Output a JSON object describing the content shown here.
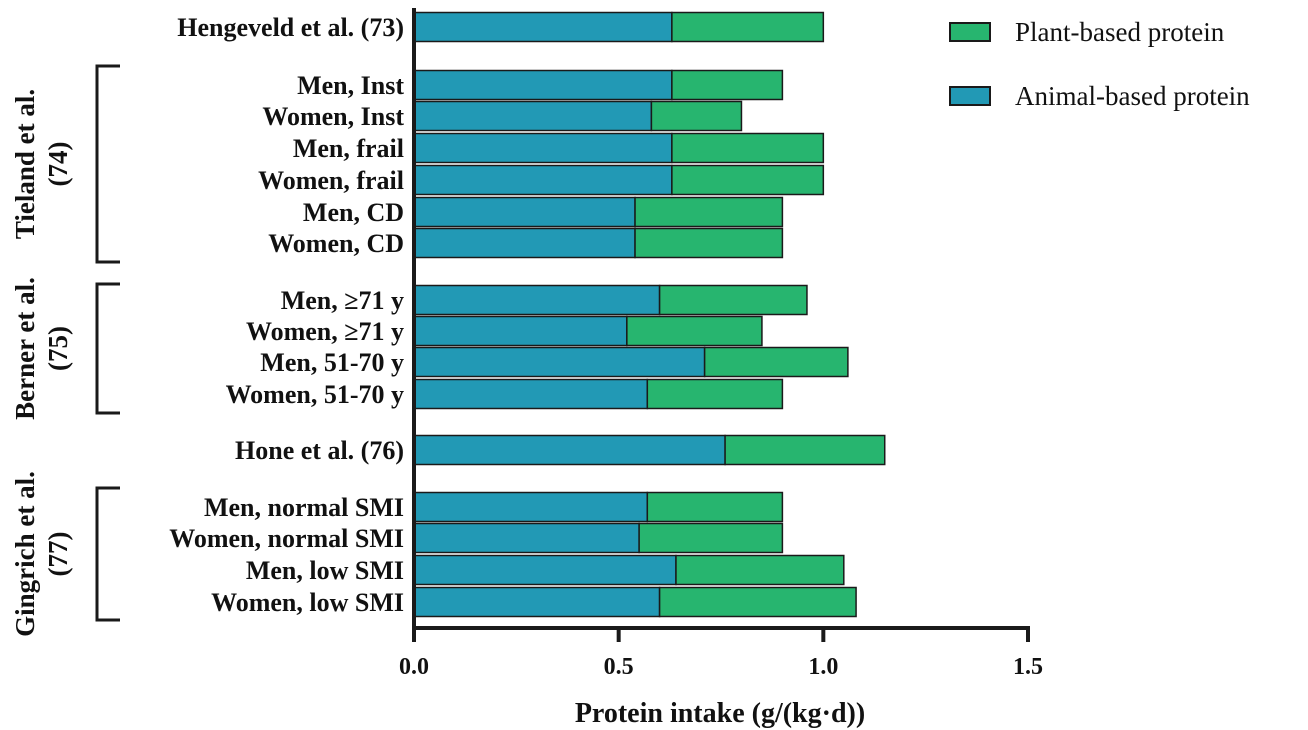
{
  "chart_data": {
    "type": "bar",
    "orientation": "horizontal",
    "stacked": true,
    "xlabel": "Protein intake (g/(kg·d))",
    "xlim": [
      0,
      1.5
    ],
    "xticks": [
      "0.0",
      "0.5",
      "1.0",
      "1.5"
    ],
    "categories": [
      "Hengeveld et al. (73)",
      "Men, Inst",
      "Women, Inst",
      "Men, frail",
      "Women, frail",
      "Men, CD",
      "Women, CD",
      "Men, ≥71 y",
      "Women, ≥71 y",
      "Men, 51-70 y",
      "Women, 51-70 y",
      "Hone et al. (76)",
      "Men, normal SMI",
      "Women, normal SMI",
      "Men, low SMI",
      "Women, low SMI"
    ],
    "series": [
      {
        "name": "Animal-based protein",
        "color": "#2299b5",
        "values": [
          0.63,
          0.63,
          0.58,
          0.63,
          0.63,
          0.54,
          0.54,
          0.6,
          0.52,
          0.71,
          0.57,
          0.76,
          0.57,
          0.55,
          0.64,
          0.6
        ]
      },
      {
        "name": "Plant-based protein",
        "color": "#27b56f",
        "values": [
          0.37,
          0.27,
          0.22,
          0.37,
          0.37,
          0.36,
          0.36,
          0.36,
          0.33,
          0.35,
          0.33,
          0.39,
          0.33,
          0.35,
          0.41,
          0.48
        ]
      }
    ],
    "groups": [
      {
        "label_line1": "Tieland et al.",
        "label_line2": "(74)"
      },
      {
        "label_line1": "Berner et al.",
        "label_line2": "(75)"
      },
      {
        "label_line1": "Gingrich et al.",
        "label_line2": "(77)"
      }
    ],
    "legend": {
      "placement": "top-right",
      "items": [
        "Plant-based protein",
        "Animal-based protein"
      ]
    }
  }
}
